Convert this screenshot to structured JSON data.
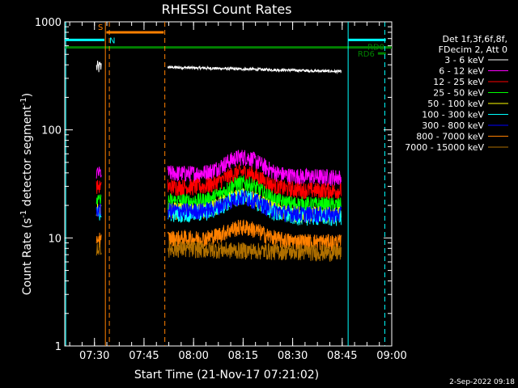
{
  "chart_data": {
    "type": "line",
    "title": "RHESSI Count Rates",
    "xlabel": "Start Time (21-Nov-17 07:21:02)",
    "ylabel_main": "Count Rate (s",
    "ylabel_sup": "-1",
    "ylabel_end": " detector segment",
    "ylabel_sup2": "-1",
    "ylabel_close": ")",
    "y_scale": "log",
    "ylim": [
      1,
      1000
    ],
    "xlim": [
      7.35,
      9.0
    ],
    "y_ticks": [
      "1",
      "10",
      "100",
      "1000"
    ],
    "x_ticks": [
      {
        "t": 7.5,
        "label": "07:30"
      },
      {
        "t": 7.75,
        "label": "07:45"
      },
      {
        "t": 8.0,
        "label": "08:00"
      },
      {
        "t": 8.25,
        "label": "08:15"
      },
      {
        "t": 8.5,
        "label": "08:30"
      },
      {
        "t": 8.75,
        "label": "08:45"
      },
      {
        "t": 9.0,
        "label": "09:00"
      }
    ],
    "legend_header": [
      "Det 1f,3f,6f,8f,",
      "FDecim 2, Att 0"
    ],
    "legend_position": "right",
    "series": [
      {
        "name": "3 - 6 keV",
        "color": "#ffffff",
        "base": 380,
        "peak": 1.0
      },
      {
        "name": "6 - 12 keV",
        "color": "#ff00ff",
        "base": 40,
        "peak": 1.45
      },
      {
        "name": "12 - 25 keV",
        "color": "#ff0000",
        "base": 30,
        "peak": 1.4
      },
      {
        "name": "25 - 50 keV",
        "color": "#00ff00",
        "base": 22,
        "peak": 1.5
      },
      {
        "name": "50 - 100 keV",
        "color": "#ffff00",
        "base": 18,
        "peak": 1.4
      },
      {
        "name": "100 - 300 keV",
        "color": "#00ffff",
        "base": 17,
        "peak": 1.45
      },
      {
        "name": "300 - 800 keV",
        "color": "#0000ff",
        "base": 18,
        "peak": 1.35
      },
      {
        "name": "800 - 7000 keV",
        "color": "#ff8000",
        "base": 10,
        "peak": 1.3
      },
      {
        "name": "7000 - 15000 keV",
        "color": "#b07000",
        "base": 8,
        "peak": 1.0
      }
    ],
    "state_bars": [
      {
        "label": "S",
        "color": "#ff8000",
        "t0": 7.56,
        "t1": 7.85,
        "y": 800
      },
      {
        "label": "N",
        "color": "#00ffff",
        "t0": 7.35,
        "t1": 7.55,
        "y": 680
      },
      {
        "label": "",
        "color": "#00ffff",
        "t0": 8.78,
        "t1": 8.97,
        "y": 680
      },
      {
        "label": "",
        "color": "#008000",
        "t0": 7.35,
        "t1": 9.0,
        "y": 580
      },
      {
        "label": "RD0",
        "color": "#008000",
        "t0": 8.97,
        "t1": 9.0,
        "y": 580
      },
      {
        "label": "RD6",
        "color": "#008000",
        "t0": 8.93,
        "t1": 8.97,
        "y": 510
      }
    ],
    "vlines": [
      {
        "t": 7.355,
        "color": "#00ffff",
        "dash": false
      },
      {
        "t": 7.555,
        "color": "#ff8000",
        "dash": false
      },
      {
        "t": 7.575,
        "color": "#ff8000",
        "dash": true
      },
      {
        "t": 7.855,
        "color": "#ff8000",
        "dash": true
      },
      {
        "t": 8.78,
        "color": "#00ffff",
        "dash": false
      },
      {
        "t": 8.965,
        "color": "#00ffff",
        "dash": true
      }
    ],
    "footer_date": "2-Sep-2022 09:18"
  }
}
